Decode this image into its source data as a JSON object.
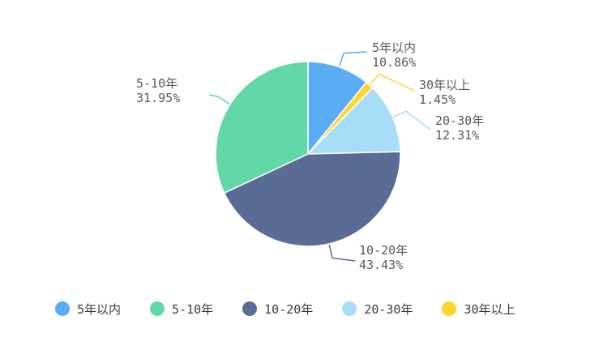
{
  "chart_data": {
    "type": "pie",
    "title": "",
    "slices": [
      {
        "label": "5年以内",
        "value": 10.86,
        "percent_label": "10.86%",
        "color": "#5AADF5"
      },
      {
        "label": "30年以上",
        "value": 1.45,
        "percent_label": "1.45%",
        "color": "#FFD42E"
      },
      {
        "label": "20-30年",
        "value": 12.31,
        "percent_label": "12.31%",
        "color": "#A8DDF8"
      },
      {
        "label": "10-20年",
        "value": 43.43,
        "percent_label": "43.43%",
        "color": "#5A6B96"
      },
      {
        "label": "5-10年",
        "value": 31.95,
        "percent_label": "31.95%",
        "color": "#62D8A9"
      }
    ],
    "legend": {
      "placement": "bottom-left",
      "items": [
        {
          "label": "5年以内",
          "color": "#5AADF5"
        },
        {
          "label": "5-10年",
          "color": "#62D8A9"
        },
        {
          "label": "10-20年",
          "color": "#5A6B96"
        },
        {
          "label": "20-30年",
          "color": "#A8DDF8"
        },
        {
          "label": "30年以上",
          "color": "#FFD42E"
        }
      ]
    }
  }
}
